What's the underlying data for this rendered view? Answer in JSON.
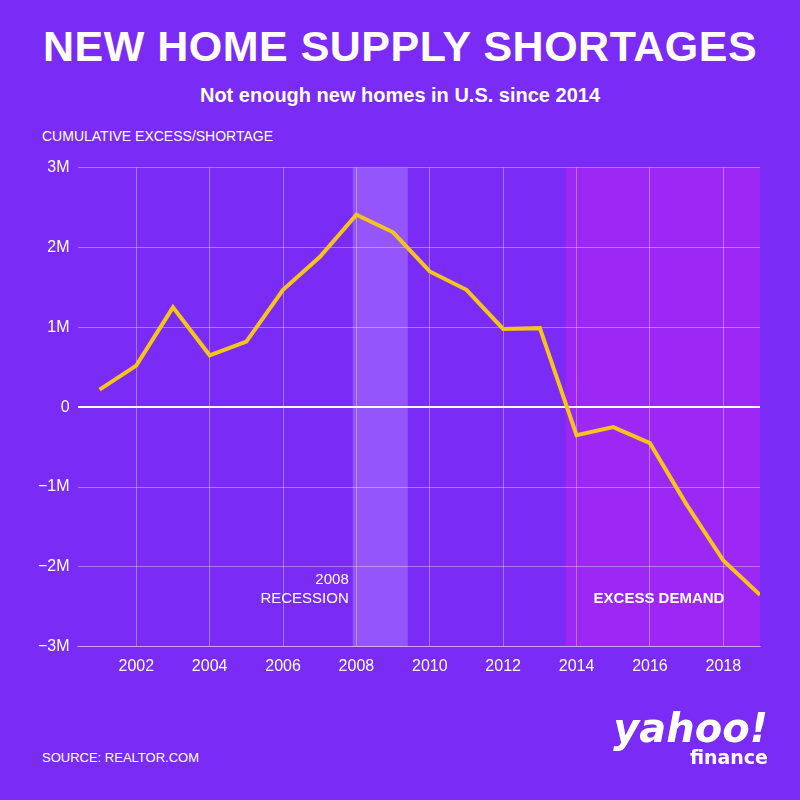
{
  "chart_data": {
    "type": "line",
    "title": "NEW HOME SUPPLY SHORTAGES",
    "subtitle": "Not enough new homes in U.S. since 2014",
    "y_label": "CUMULATIVE EXCESS/SHORTAGE",
    "x": [
      2001,
      2002,
      2003,
      2004,
      2005,
      2006,
      2007,
      2008,
      2009,
      2010,
      2011,
      2012,
      2013,
      2014,
      2015,
      2016,
      2017,
      2018,
      2019
    ],
    "values": [
      220000,
      520000,
      1250000,
      650000,
      820000,
      1470000,
      1880000,
      2410000,
      2190000,
      1700000,
      1470000,
      980000,
      990000,
      -350000,
      -250000,
      -450000,
      -1220000,
      -1920000,
      -2350000
    ],
    "color": "#f5c518",
    "xlim": [
      2000.4,
      2019
    ],
    "xticks": [
      2002,
      2004,
      2006,
      2008,
      2010,
      2012,
      2014,
      2016,
      2018
    ],
    "ylim": [
      -3000000,
      3000000
    ],
    "yticks": [
      {
        "value": -3000000,
        "label": "−3M"
      },
      {
        "value": -2000000,
        "label": "−2M"
      },
      {
        "value": -1000000,
        "label": "−1M"
      },
      0,
      {
        "value": 1000000,
        "label": "1M"
      },
      {
        "value": 2000000,
        "label": "2M"
      },
      {
        "value": 3000000,
        "label": "3M"
      }
    ],
    "grid": true,
    "annotations": [
      {
        "label": "2008\nRECESSION",
        "x_range": [
          2007.9,
          2009.4
        ]
      },
      {
        "label": "EXCESS DEMAND",
        "x_range": [
          2013.7,
          2019
        ]
      }
    ],
    "source": "SOURCE: REALTOR.COM",
    "logo": [
      "yahoo!",
      "finance"
    ]
  }
}
